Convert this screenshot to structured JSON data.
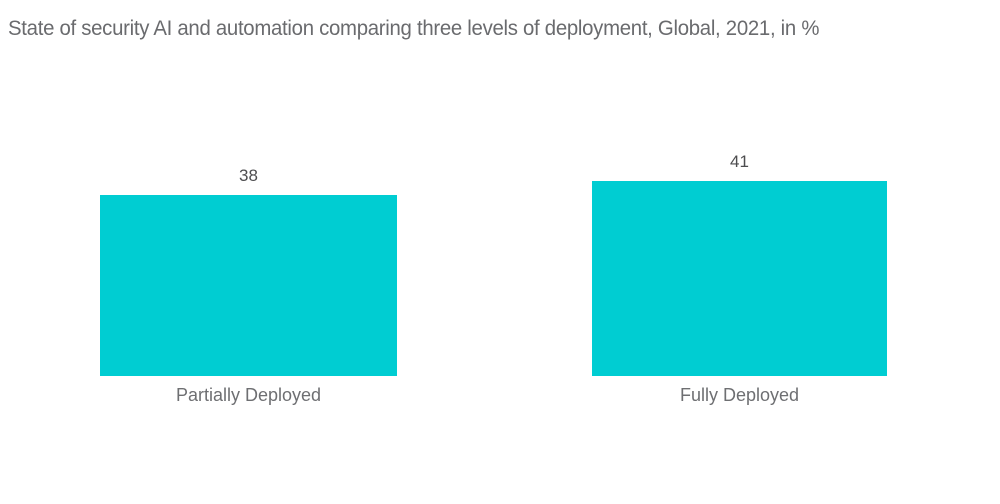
{
  "chart_data": {
    "type": "bar",
    "title": "State of security AI and automation comparing three levels of deployment, Global, 2021, in %",
    "categories": [
      "Partially Deployed",
      "Fully Deployed"
    ],
    "values": [
      38,
      41
    ],
    "xlabel": "",
    "ylabel": "",
    "ylim": [
      0,
      45
    ],
    "grid": false,
    "legend": false,
    "value_labels": "above-bars",
    "axes_visible": false,
    "colors": {
      "bar": "#00CDD2",
      "title_text": "#6a6b6e",
      "value_text": "#4d4d4f",
      "category_text": "#6e6f72",
      "background": "#ffffff"
    }
  }
}
